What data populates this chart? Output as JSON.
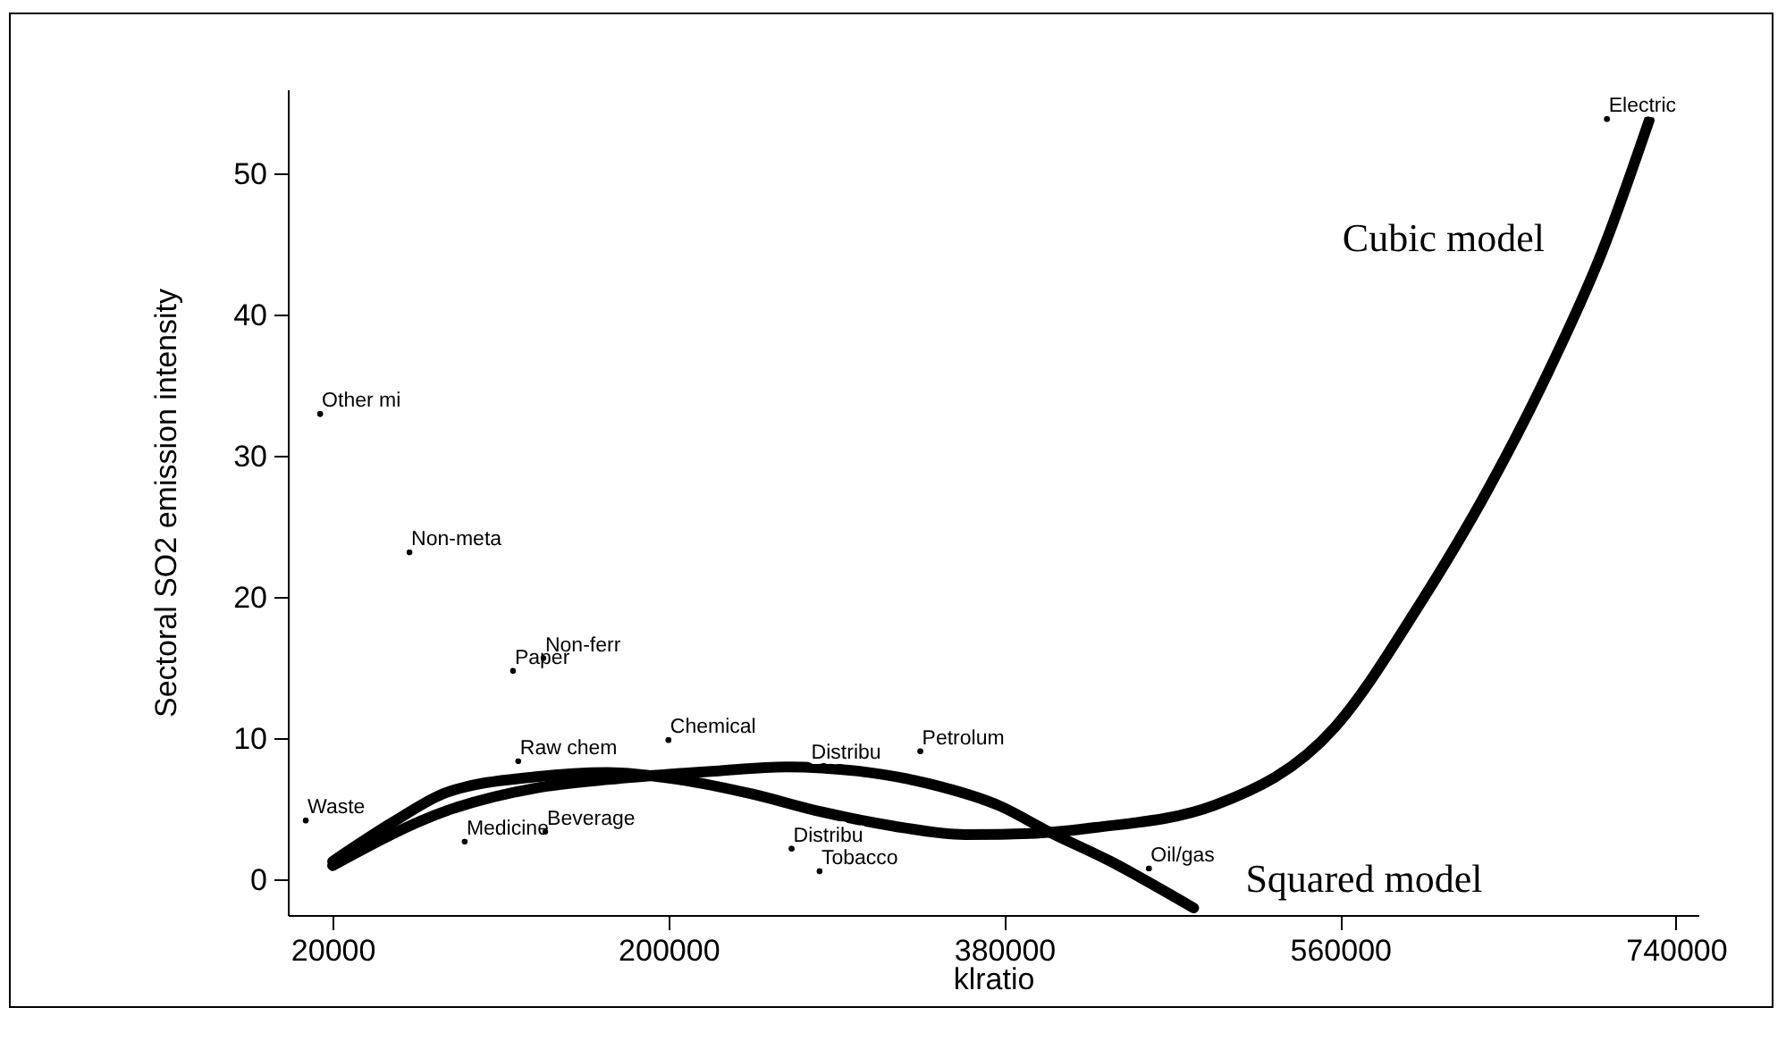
{
  "chart_data": {
    "type": "line",
    "xlabel": "klratio",
    "ylabel": "Sectoral SO2 emission intensity",
    "xlim": [
      -4000,
      752000
    ],
    "xticks": [
      20000,
      200000,
      380000,
      560000,
      740000
    ],
    "ylim": [
      -2.5,
      56
    ],
    "yticks": [
      0,
      10,
      20,
      30,
      40,
      50
    ],
    "grid": false,
    "marker": "none",
    "line_style": "solid",
    "series": [
      {
        "name": "Cubic model",
        "color": "#000000",
        "x": [
          20000,
          52600,
          81300,
          129100,
          167400,
          205700,
          244000,
          282300,
          320600,
          358900,
          397200,
          428800,
          493000,
          557100,
          601100,
          639400,
          672000,
          700700,
          725600
        ],
        "values": [
          1.3,
          4.1,
          6.2,
          7.3,
          7.6,
          7.1,
          6.1,
          4.8,
          3.8,
          3.2,
          3.3,
          3.7,
          5.3,
          10.8,
          19.2,
          27.7,
          36.1,
          44.6,
          53.8
        ]
      },
      {
        "name": "Squared model",
        "color": "#000000",
        "x": [
          20000,
          81300,
          129100,
          167400,
          224900,
          263200,
          301500,
          339800,
          378100,
          403900,
          435500,
          481500
        ],
        "values": [
          1.0,
          4.9,
          6.5,
          7.1,
          7.7,
          8.0,
          7.7,
          6.8,
          5.2,
          3.4,
          1.4,
          -2.0
        ]
      },
      {
        "type": "scatter",
        "color": "#000000",
        "marker": "circle",
        "x": [
          13300,
          61200,
          133000,
          116700,
          119500,
          200000,
          275600,
          335000,
          266000,
          281000,
          457500,
          703000,
          134000,
          90800,
          5600
        ],
        "values": [
          33.0,
          23.2,
          15.7,
          14.8,
          8.4,
          9.9,
          8.1,
          9.1,
          2.2,
          0.6,
          0.8,
          53.9,
          3.4,
          2.7,
          4.2
        ],
        "value_labels": [
          "Other mi",
          "Non-meta",
          "Non-ferr",
          "Paper",
          "Raw chem",
          "Chemical",
          "Distribu",
          "Petrolum",
          "Distribu",
          "Tobacco",
          "Oil/gas",
          "Electric",
          "Beverage",
          "Medicine",
          "Waste"
        ]
      }
    ]
  }
}
